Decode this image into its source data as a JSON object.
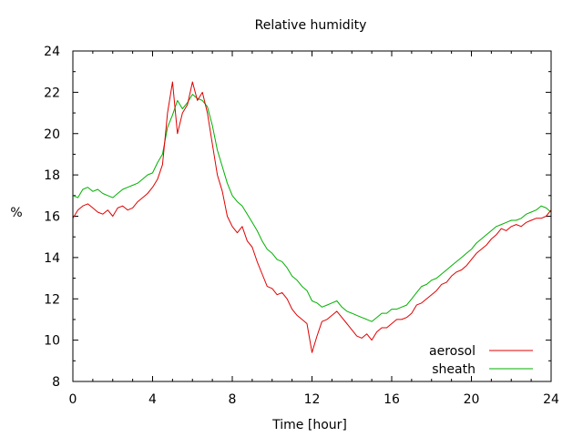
{
  "chart_data": {
    "type": "line",
    "title": "Relative humidity",
    "xlabel": "Time [hour]",
    "ylabel": "%",
    "xlim": [
      0,
      24
    ],
    "ylim": [
      8,
      24
    ],
    "xticks": [
      0,
      4,
      8,
      12,
      16,
      20,
      24
    ],
    "yticks": [
      8,
      10,
      12,
      14,
      16,
      18,
      20,
      22,
      24
    ],
    "grid": false,
    "legend_position": "bottom-right",
    "series": [
      {
        "name": "aerosol",
        "color": "#e00000",
        "x": [
          0,
          0.25,
          0.5,
          0.75,
          1,
          1.25,
          1.5,
          1.75,
          2,
          2.25,
          2.5,
          2.75,
          3,
          3.25,
          3.5,
          3.75,
          4,
          4.25,
          4.5,
          4.75,
          5,
          5.25,
          5.5,
          5.75,
          6,
          6.25,
          6.5,
          6.75,
          7,
          7.25,
          7.5,
          7.75,
          8,
          8.25,
          8.5,
          8.75,
          9,
          9.25,
          9.5,
          9.75,
          10,
          10.25,
          10.5,
          10.75,
          11,
          11.25,
          11.5,
          11.75,
          12,
          12.25,
          12.5,
          12.75,
          13,
          13.25,
          13.5,
          13.75,
          14,
          14.25,
          14.5,
          14.75,
          15,
          15.25,
          15.5,
          15.75,
          16,
          16.25,
          16.5,
          16.75,
          17,
          17.25,
          17.5,
          17.75,
          18,
          18.25,
          18.5,
          18.75,
          19,
          19.25,
          19.5,
          19.75,
          20,
          20.25,
          20.5,
          20.75,
          21,
          21.25,
          21.5,
          21.75,
          22,
          22.25,
          22.5,
          22.75,
          23,
          23.25,
          23.5,
          23.75,
          24
        ],
        "y": [
          15.9,
          16.3,
          16.5,
          16.6,
          16.4,
          16.2,
          16.1,
          16.3,
          16.0,
          16.4,
          16.5,
          16.3,
          16.4,
          16.7,
          16.9,
          17.1,
          17.4,
          17.8,
          18.5,
          21.0,
          22.5,
          20.0,
          21.0,
          21.4,
          22.5,
          21.6,
          22.0,
          21.0,
          19.5,
          18.0,
          17.2,
          16.0,
          15.5,
          15.2,
          15.5,
          14.8,
          14.5,
          13.8,
          13.2,
          12.6,
          12.5,
          12.2,
          12.3,
          12.0,
          11.5,
          11.2,
          11.0,
          10.8,
          9.4,
          10.2,
          10.9,
          11.0,
          11.2,
          11.4,
          11.1,
          10.8,
          10.5,
          10.2,
          10.1,
          10.3,
          10.0,
          10.4,
          10.6,
          10.6,
          10.8,
          11.0,
          11.0,
          11.1,
          11.3,
          11.7,
          11.8,
          12.0,
          12.2,
          12.4,
          12.7,
          12.8,
          13.1,
          13.3,
          13.4,
          13.6,
          13.9,
          14.2,
          14.4,
          14.6,
          14.9,
          15.1,
          15.4,
          15.3,
          15.5,
          15.6,
          15.5,
          15.7,
          15.8,
          15.9,
          15.9,
          16.0,
          16.3
        ]
      },
      {
        "name": "sheath",
        "color": "#00b000",
        "x": [
          0,
          0.25,
          0.5,
          0.75,
          1,
          1.25,
          1.5,
          1.75,
          2,
          2.25,
          2.5,
          2.75,
          3,
          3.25,
          3.5,
          3.75,
          4,
          4.25,
          4.5,
          4.75,
          5,
          5.25,
          5.5,
          5.75,
          6,
          6.25,
          6.5,
          6.75,
          7,
          7.25,
          7.5,
          7.75,
          8,
          8.25,
          8.5,
          8.75,
          9,
          9.25,
          9.5,
          9.75,
          10,
          10.25,
          10.5,
          10.75,
          11,
          11.25,
          11.5,
          11.75,
          12,
          12.25,
          12.5,
          12.75,
          13,
          13.25,
          13.5,
          13.75,
          14,
          14.25,
          14.5,
          14.75,
          15,
          15.25,
          15.5,
          15.75,
          16,
          16.25,
          16.5,
          16.75,
          17,
          17.25,
          17.5,
          17.75,
          18,
          18.25,
          18.5,
          18.75,
          19,
          19.25,
          19.5,
          19.75,
          20,
          20.25,
          20.5,
          20.75,
          21,
          21.25,
          21.5,
          21.75,
          22,
          22.25,
          22.5,
          22.75,
          23,
          23.25,
          23.5,
          23.75,
          24
        ],
        "y": [
          17.0,
          16.9,
          17.3,
          17.4,
          17.2,
          17.3,
          17.1,
          17.0,
          16.9,
          17.1,
          17.3,
          17.4,
          17.5,
          17.6,
          17.8,
          18.0,
          18.1,
          18.6,
          19.0,
          20.3,
          20.9,
          21.6,
          21.2,
          21.5,
          21.9,
          21.7,
          21.6,
          21.3,
          20.4,
          19.2,
          18.4,
          17.6,
          17.0,
          16.7,
          16.5,
          16.1,
          15.7,
          15.3,
          14.8,
          14.4,
          14.2,
          13.9,
          13.8,
          13.5,
          13.1,
          12.9,
          12.6,
          12.4,
          11.9,
          11.8,
          11.6,
          11.7,
          11.8,
          11.9,
          11.6,
          11.4,
          11.3,
          11.2,
          11.1,
          11.0,
          10.9,
          11.1,
          11.3,
          11.3,
          11.5,
          11.5,
          11.6,
          11.7,
          12.0,
          12.3,
          12.6,
          12.7,
          12.9,
          13.0,
          13.2,
          13.4,
          13.6,
          13.8,
          14.0,
          14.2,
          14.4,
          14.7,
          14.9,
          15.1,
          15.3,
          15.5,
          15.6,
          15.7,
          15.8,
          15.8,
          15.9,
          16.1,
          16.2,
          16.3,
          16.5,
          16.4,
          16.2
        ]
      }
    ]
  }
}
